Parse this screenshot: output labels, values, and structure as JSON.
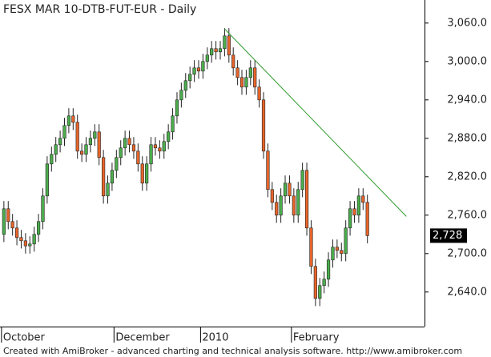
{
  "chart_data": {
    "type": "candlestick",
    "title": "FESX MAR 10-DTB-FUT-EUR - Daily",
    "footer": "Created with AmiBroker - advanced charting and technical analysis software. http://www.amibroker.com",
    "open": [
      2730,
      2770,
      2750,
      2740,
      2725,
      2720,
      2712,
      2715,
      2730,
      2750,
      2790,
      2840,
      2855,
      2870,
      2880,
      2900,
      2915,
      2905,
      2860,
      2855,
      2870,
      2880,
      2890,
      2850,
      2790,
      2810,
      2830,
      2850,
      2865,
      2880,
      2870,
      2860,
      2840,
      2810,
      2840,
      2870,
      2865,
      2860,
      2875,
      2890,
      2915,
      2940,
      2955,
      2970,
      2980,
      2990,
      2985,
      3000,
      3010,
      3020,
      3015,
      3020,
      3040,
      3010,
      2990,
      2975,
      2960,
      2975,
      2990,
      2960,
      2940,
      2860,
      2800,
      2780,
      2760,
      2790,
      2810,
      2790,
      2760,
      2800,
      2830,
      2740,
      2680,
      2630,
      2650,
      2660,
      2690,
      2710,
      2705,
      2700,
      2740,
      2770,
      2760,
      2790,
      2780
    ],
    "high": [
      2782,
      2782,
      2762,
      2752,
      2737,
      2732,
      2727,
      2742,
      2762,
      2802,
      2852,
      2867,
      2882,
      2892,
      2912,
      2927,
      2927,
      2917,
      2872,
      2882,
      2892,
      2902,
      2902,
      2862,
      2822,
      2842,
      2862,
      2877,
      2892,
      2892,
      2882,
      2872,
      2852,
      2852,
      2882,
      2882,
      2877,
      2887,
      2902,
      2927,
      2952,
      2967,
      2982,
      2992,
      3002,
      3002,
      3012,
      3022,
      3032,
      3032,
      3032,
      3052,
      3052,
      3022,
      3002,
      2987,
      2987,
      3002,
      3002,
      2972,
      2952,
      2872,
      2812,
      2792,
      2802,
      2822,
      2822,
      2802,
      2812,
      2842,
      2842,
      2752,
      2692,
      2662,
      2672,
      2702,
      2722,
      2722,
      2717,
      2752,
      2782,
      2782,
      2802,
      2802,
      2792
    ],
    "low": [
      2718,
      2738,
      2728,
      2713,
      2708,
      2700,
      2700,
      2703,
      2718,
      2738,
      2778,
      2828,
      2843,
      2858,
      2868,
      2888,
      2893,
      2848,
      2843,
      2843,
      2858,
      2868,
      2838,
      2778,
      2778,
      2798,
      2818,
      2838,
      2853,
      2858,
      2848,
      2828,
      2798,
      2798,
      2828,
      2853,
      2848,
      2848,
      2863,
      2878,
      2903,
      2928,
      2943,
      2958,
      2968,
      2973,
      2973,
      2988,
      2998,
      3003,
      3003,
      3008,
      2998,
      2978,
      2963,
      2948,
      2948,
      2963,
      2948,
      2928,
      2848,
      2788,
      2768,
      2748,
      2748,
      2778,
      2778,
      2748,
      2748,
      2788,
      2728,
      2668,
      2618,
      2618,
      2638,
      2648,
      2678,
      2693,
      2688,
      2688,
      2728,
      2748,
      2748,
      2768,
      2716
    ],
    "close": [
      2770,
      2750,
      2740,
      2725,
      2720,
      2712,
      2715,
      2730,
      2750,
      2790,
      2840,
      2855,
      2870,
      2880,
      2900,
      2915,
      2905,
      2860,
      2855,
      2870,
      2880,
      2890,
      2850,
      2790,
      2810,
      2830,
      2850,
      2865,
      2880,
      2870,
      2860,
      2840,
      2810,
      2840,
      2870,
      2865,
      2860,
      2875,
      2890,
      2915,
      2940,
      2955,
      2970,
      2980,
      2990,
      2985,
      3000,
      3010,
      3020,
      3015,
      3020,
      3040,
      3010,
      2990,
      2975,
      2960,
      2975,
      2990,
      2960,
      2940,
      2860,
      2800,
      2780,
      2760,
      2790,
      2810,
      2790,
      2760,
      2800,
      2830,
      2740,
      2680,
      2630,
      2650,
      2660,
      2690,
      2710,
      2705,
      2700,
      2740,
      2770,
      2760,
      2790,
      2780,
      2728
    ],
    "up_color": "#4cae4c",
    "down_color": "#e8652a",
    "trendline": {
      "x": [
        51,
        93
      ],
      "values": [
        3051,
        2758
      ],
      "color": "#2e9a2e"
    },
    "last_price": {
      "value": 2728,
      "label": "2,728"
    },
    "xlim": [
      -0.9,
      97.2
    ],
    "ylim": [
      2586,
      3096
    ],
    "xticks": [
      {
        "value": 0,
        "label": "October"
      },
      {
        "value": 26,
        "label": "December"
      },
      {
        "value": 46,
        "label": "2010"
      },
      {
        "value": 67,
        "label": "February"
      }
    ],
    "yticks": [
      {
        "value": 2640,
        "label": "2,640.0"
      },
      {
        "value": 2700,
        "label": "2,700.0"
      },
      {
        "value": 2760,
        "label": "2,760.0"
      },
      {
        "value": 2820,
        "label": "2,820.0"
      },
      {
        "value": 2880,
        "label": "2,880.0"
      },
      {
        "value": 2940,
        "label": "2,940.0"
      },
      {
        "value": 3000,
        "label": "3,000.0"
      },
      {
        "value": 3060,
        "label": "3,060.0"
      }
    ]
  }
}
